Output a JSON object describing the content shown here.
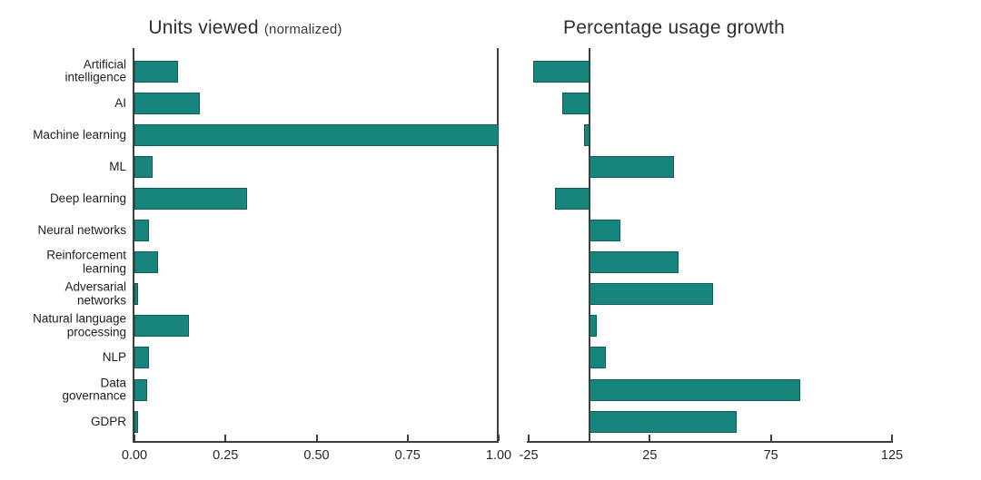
{
  "figure": {
    "background": "#ffffff",
    "bar_color": "#17857B",
    "axis_color": "#3e3e3e",
    "text_color": "#1e1e1e"
  },
  "chart_data": [
    {
      "type": "bar",
      "orientation": "horizontal",
      "title": "Units viewed",
      "title_suffix": "(normalized)",
      "categories": [
        "Artificial\nintelligence",
        "AI",
        "Machine learning",
        "ML",
        "Deep learning",
        "Neural networks",
        "Reinforcement\nlearning",
        "Adversarial\nnetworks",
        "Natural language\nprocessing",
        "NLP",
        "Data\ngovernance",
        "GDPR"
      ],
      "values": [
        0.12,
        0.18,
        1.0,
        0.05,
        0.31,
        0.04,
        0.065,
        0.01,
        0.15,
        0.04,
        0.035,
        0.01
      ],
      "xlim": [
        0,
        1.0
      ],
      "xticks": [
        {
          "value": 0,
          "label": "0.00"
        },
        {
          "value": 0.25,
          "label": "0.25"
        },
        {
          "value": 0.5,
          "label": "0.50"
        },
        {
          "value": 0.75,
          "label": "0.75"
        },
        {
          "value": 1.0,
          "label": "1.00"
        }
      ],
      "grid": false,
      "legend": false
    },
    {
      "type": "bar",
      "orientation": "horizontal",
      "title": "Percentage usage growth",
      "categories_same_as_first_chart": true,
      "values": [
        -23,
        -11,
        -2,
        35,
        -14,
        13,
        37,
        51,
        3,
        7,
        87,
        61
      ],
      "xlim": [
        -26,
        125
      ],
      "xticks": [
        {
          "value": -25,
          "label": "-25"
        },
        {
          "value": 25,
          "label": "25"
        },
        {
          "value": 75,
          "label": "75"
        },
        {
          "value": 125,
          "label": "125"
        }
      ],
      "zero_line": true,
      "grid": false,
      "legend": false
    }
  ]
}
